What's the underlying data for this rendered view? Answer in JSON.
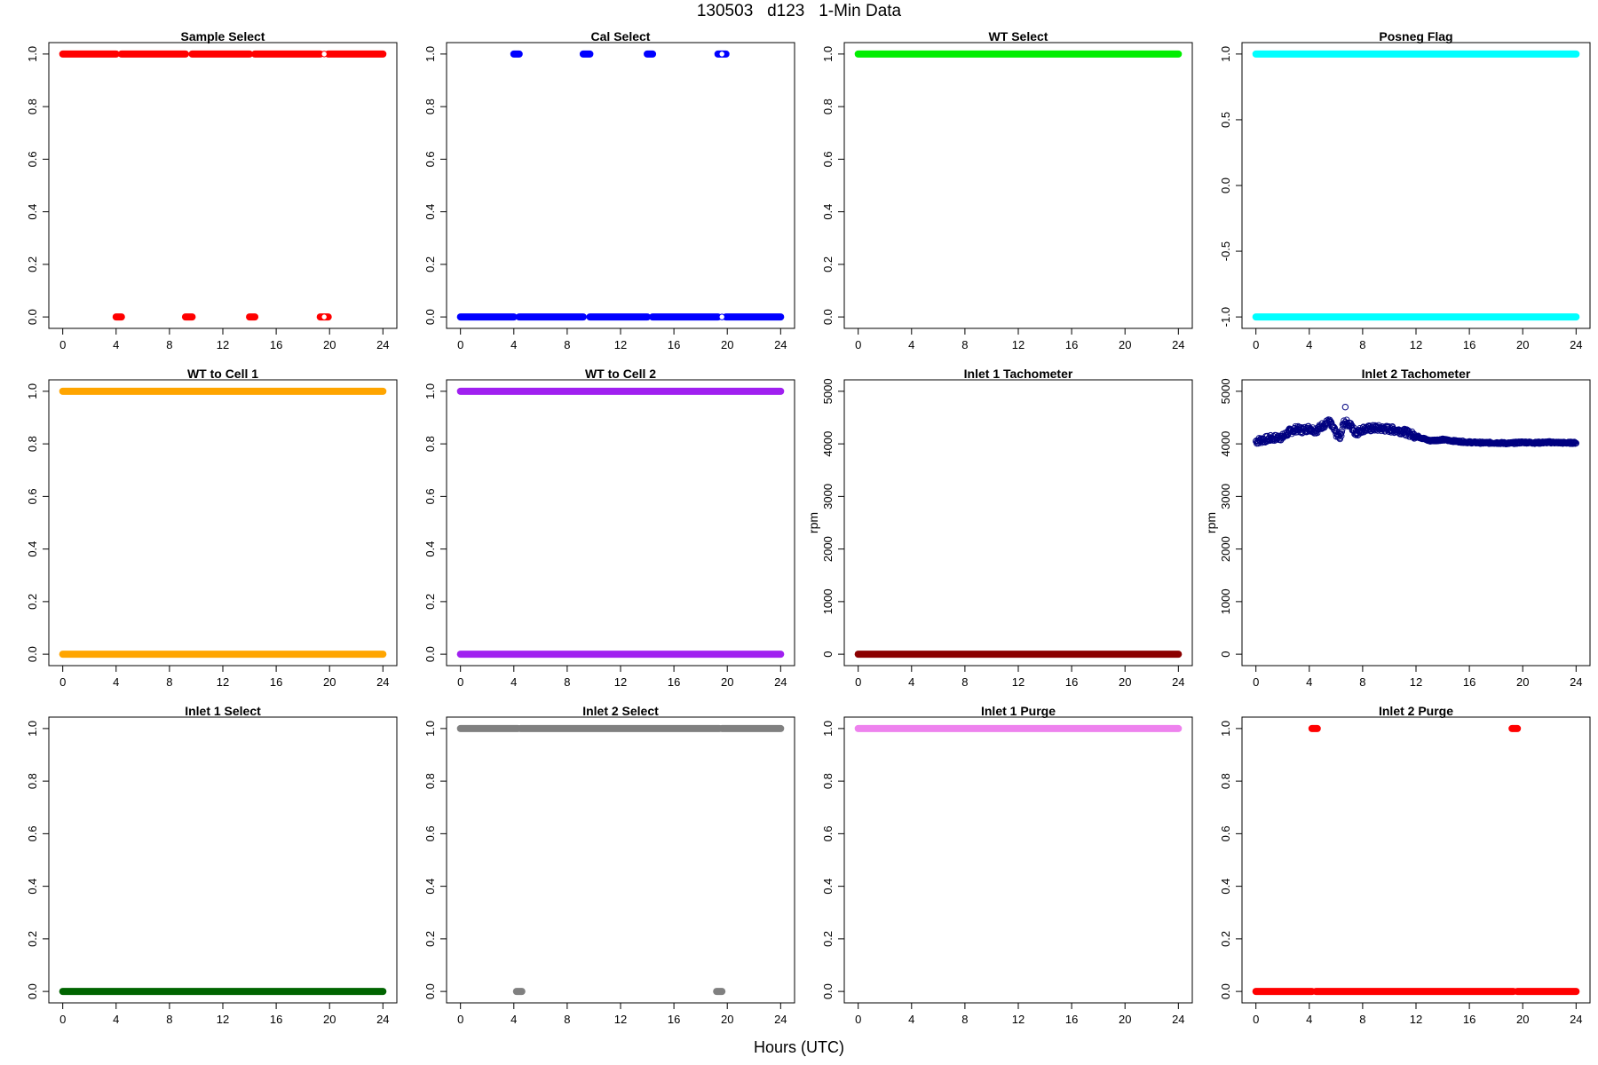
{
  "header": {
    "title": "130503   d123   1-Min Data",
    "xlabel": "Hours (UTC)"
  },
  "chart_data": [
    {
      "type": "scatter",
      "title": "Sample Select",
      "color": "#ff0000",
      "marker": "filled",
      "xlim": [
        0,
        24
      ],
      "xticks": [
        0,
        4,
        8,
        12,
        16,
        20,
        24
      ],
      "ylim": [
        0,
        1
      ],
      "yticks": [
        0,
        0.2,
        0.4,
        0.6,
        0.8,
        1
      ],
      "ytick_labels": [
        "0.0",
        "0.2",
        "0.4",
        "0.6",
        "0.8",
        "1.0"
      ],
      "ylabel": "",
      "levels": [
        {
          "y": 1,
          "x_ranges": [
            [
              0,
              4.0
            ],
            [
              4.4,
              9.2
            ],
            [
              9.7,
              14.0
            ],
            [
              14.4,
              19.3
            ],
            [
              19.9,
              24
            ]
          ]
        },
        {
          "y": 0,
          "x_ranges": [
            [
              4.0,
              4.4
            ],
            [
              9.2,
              9.7
            ],
            [
              14.0,
              14.4
            ],
            [
              19.3,
              19.9
            ]
          ]
        }
      ],
      "open_points": [
        [
          19.6,
          0
        ],
        [
          19.6,
          1
        ]
      ]
    },
    {
      "type": "scatter",
      "title": "Cal Select",
      "color": "#0000ff",
      "marker": "filled",
      "xlim": [
        0,
        24
      ],
      "xticks": [
        0,
        4,
        8,
        12,
        16,
        20,
        24
      ],
      "ylim": [
        0,
        1
      ],
      "yticks": [
        0,
        0.2,
        0.4,
        0.6,
        0.8,
        1
      ],
      "ytick_labels": [
        "0.0",
        "0.2",
        "0.4",
        "0.6",
        "0.8",
        "1.0"
      ],
      "ylabel": "",
      "levels": [
        {
          "y": 0,
          "x_ranges": [
            [
              0,
              4.0
            ],
            [
              4.4,
              9.2
            ],
            [
              9.7,
              14.0
            ],
            [
              14.4,
              19.3
            ],
            [
              19.9,
              24
            ]
          ]
        },
        {
          "y": 1,
          "x_ranges": [
            [
              4.0,
              4.4
            ],
            [
              9.2,
              9.7
            ],
            [
              14.0,
              14.4
            ],
            [
              19.3,
              19.9
            ]
          ]
        }
      ],
      "open_points": [
        [
          19.6,
          0
        ],
        [
          19.6,
          1
        ]
      ]
    },
    {
      "type": "scatter",
      "title": "WT Select",
      "color": "#00ee00",
      "marker": "filled",
      "xlim": [
        0,
        24
      ],
      "xticks": [
        0,
        4,
        8,
        12,
        16,
        20,
        24
      ],
      "ylim": [
        0,
        1
      ],
      "yticks": [
        0,
        0.2,
        0.4,
        0.6,
        0.8,
        1
      ],
      "ytick_labels": [
        "0.0",
        "0.2",
        "0.4",
        "0.6",
        "0.8",
        "1.0"
      ],
      "ylabel": "",
      "levels": [
        {
          "y": 1,
          "x_ranges": [
            [
              0,
              24
            ]
          ]
        }
      ],
      "open_points": []
    },
    {
      "type": "scatter",
      "title": "Posneg Flag",
      "color": "#00ffff",
      "marker": "filled",
      "xlim": [
        0,
        24
      ],
      "xticks": [
        0,
        4,
        8,
        12,
        16,
        20,
        24
      ],
      "ylim": [
        -1,
        1
      ],
      "yticks": [
        -1,
        -0.5,
        0,
        0.5,
        1
      ],
      "ytick_labels": [
        "-1.0",
        "-0.5",
        "0.0",
        "0.5",
        "1.0"
      ],
      "ylabel": "",
      "levels": [
        {
          "y": 1,
          "x_ranges": [
            [
              0,
              24
            ]
          ]
        },
        {
          "y": -1,
          "x_ranges": [
            [
              0,
              24
            ]
          ]
        }
      ],
      "open_points": []
    },
    {
      "type": "scatter",
      "title": "WT to Cell 1",
      "color": "#ffa500",
      "marker": "filled",
      "xlim": [
        0,
        24
      ],
      "xticks": [
        0,
        4,
        8,
        12,
        16,
        20,
        24
      ],
      "ylim": [
        0,
        1
      ],
      "yticks": [
        0,
        0.2,
        0.4,
        0.6,
        0.8,
        1
      ],
      "ytick_labels": [
        "0.0",
        "0.2",
        "0.4",
        "0.6",
        "0.8",
        "1.0"
      ],
      "ylabel": "",
      "levels": [
        {
          "y": 1,
          "x_ranges": [
            [
              0,
              24
            ]
          ]
        },
        {
          "y": 0,
          "x_ranges": [
            [
              0,
              24
            ]
          ]
        }
      ],
      "open_points": []
    },
    {
      "type": "scatter",
      "title": "WT to Cell 2",
      "color": "#a020f0",
      "marker": "filled",
      "xlim": [
        0,
        24
      ],
      "xticks": [
        0,
        4,
        8,
        12,
        16,
        20,
        24
      ],
      "ylim": [
        0,
        1
      ],
      "yticks": [
        0,
        0.2,
        0.4,
        0.6,
        0.8,
        1
      ],
      "ytick_labels": [
        "0.0",
        "0.2",
        "0.4",
        "0.6",
        "0.8",
        "1.0"
      ],
      "ylabel": "",
      "levels": [
        {
          "y": 1,
          "x_ranges": [
            [
              0,
              24
            ]
          ]
        },
        {
          "y": 0,
          "x_ranges": [
            [
              0,
              24
            ]
          ]
        }
      ],
      "open_points": []
    },
    {
      "type": "scatter",
      "title": "Inlet 1 Tachometer",
      "color": "#8b0000",
      "marker": "filled",
      "xlim": [
        0,
        24
      ],
      "xticks": [
        0,
        4,
        8,
        12,
        16,
        20,
        24
      ],
      "ylim": [
        0,
        5000
      ],
      "yticks": [
        0,
        1000,
        2000,
        3000,
        4000,
        5000
      ],
      "ytick_labels": [
        "0",
        "1000",
        "2000",
        "3000",
        "4000",
        "5000"
      ],
      "ylabel": "rpm",
      "levels": [
        {
          "y": 0,
          "x_ranges": [
            [
              0,
              24
            ]
          ]
        }
      ],
      "open_points": []
    },
    {
      "type": "scatter",
      "title": "Inlet 2 Tachometer",
      "color": "#000080",
      "marker": "open",
      "xlim": [
        0,
        24
      ],
      "xticks": [
        0,
        4,
        8,
        12,
        16,
        20,
        24
      ],
      "ylim": [
        0,
        5000
      ],
      "yticks": [
        0,
        1000,
        2000,
        3000,
        4000,
        5000
      ],
      "ytick_labels": [
        "0",
        "1000",
        "2000",
        "3000",
        "4000",
        "5000"
      ],
      "ylabel": "rpm",
      "levels": [],
      "open_points": [
        [
          6.7,
          4700
        ]
      ],
      "trend": [
        [
          0,
          4050
        ],
        [
          1,
          4100
        ],
        [
          2,
          4130
        ],
        [
          2.5,
          4230
        ],
        [
          3,
          4280
        ],
        [
          3.5,
          4260
        ],
        [
          4,
          4300
        ],
        [
          4.5,
          4250
        ],
        [
          5,
          4350
        ],
        [
          5.5,
          4420
        ],
        [
          6,
          4200
        ],
        [
          6.3,
          4100
        ],
        [
          6.6,
          4420
        ],
        [
          7,
          4380
        ],
        [
          7.5,
          4200
        ],
        [
          8,
          4280
        ],
        [
          9,
          4300
        ],
        [
          10,
          4280
        ],
        [
          11,
          4240
        ],
        [
          12,
          4150
        ],
        [
          13,
          4060
        ],
        [
          14,
          4080
        ],
        [
          15,
          4050
        ],
        [
          16,
          4030
        ],
        [
          17,
          4020
        ],
        [
          18,
          4020
        ],
        [
          19,
          4010
        ],
        [
          20,
          4030
        ],
        [
          21,
          4020
        ],
        [
          22,
          4030
        ],
        [
          23,
          4020
        ],
        [
          24,
          4020
        ]
      ]
    },
    {
      "type": "scatter",
      "title": "Inlet 1 Select",
      "color": "#006400",
      "marker": "filled",
      "xlim": [
        0,
        24
      ],
      "xticks": [
        0,
        4,
        8,
        12,
        16,
        20,
        24
      ],
      "ylim": [
        0,
        1
      ],
      "yticks": [
        0,
        0.2,
        0.4,
        0.6,
        0.8,
        1
      ],
      "ytick_labels": [
        "0.0",
        "0.2",
        "0.4",
        "0.6",
        "0.8",
        "1.0"
      ],
      "ylabel": "",
      "levels": [
        {
          "y": 0,
          "x_ranges": [
            [
              0,
              24
            ]
          ]
        }
      ],
      "open_points": []
    },
    {
      "type": "scatter",
      "title": "Inlet 2 Select",
      "color": "#808080",
      "marker": "filled",
      "xlim": [
        0,
        24
      ],
      "xticks": [
        0,
        4,
        8,
        12,
        16,
        20,
        24
      ],
      "ylim": [
        0,
        1
      ],
      "yticks": [
        0,
        0.2,
        0.4,
        0.6,
        0.8,
        1
      ],
      "ytick_labels": [
        "0.0",
        "0.2",
        "0.4",
        "0.6",
        "0.8",
        "1.0"
      ],
      "ylabel": "",
      "levels": [
        {
          "y": 1,
          "x_ranges": [
            [
              0,
              4.3
            ],
            [
              4.5,
              19.4
            ],
            [
              19.6,
              24
            ]
          ]
        },
        {
          "y": 0,
          "x_ranges": [
            [
              4.2,
              4.6
            ],
            [
              19.2,
              19.6
            ]
          ]
        }
      ],
      "open_points": []
    },
    {
      "type": "scatter",
      "title": "Inlet 1 Purge",
      "color": "#ee82ee",
      "marker": "filled",
      "xlim": [
        0,
        24
      ],
      "xticks": [
        0,
        4,
        8,
        12,
        16,
        20,
        24
      ],
      "ylim": [
        0,
        1
      ],
      "yticks": [
        0,
        0.2,
        0.4,
        0.6,
        0.8,
        1
      ],
      "ytick_labels": [
        "0.0",
        "0.2",
        "0.4",
        "0.6",
        "0.8",
        "1.0"
      ],
      "ylabel": "",
      "levels": [
        {
          "y": 1,
          "x_ranges": [
            [
              0,
              24
            ]
          ]
        }
      ],
      "open_points": []
    },
    {
      "type": "scatter",
      "title": "Inlet 2 Purge",
      "color": "#ff0000",
      "marker": "filled",
      "xlim": [
        0,
        24
      ],
      "xticks": [
        0,
        4,
        8,
        12,
        16,
        20,
        24
      ],
      "ylim": [
        0,
        1
      ],
      "yticks": [
        0,
        0.2,
        0.4,
        0.6,
        0.8,
        1
      ],
      "ytick_labels": [
        "0.0",
        "0.2",
        "0.4",
        "0.6",
        "0.8",
        "1.0"
      ],
      "ylabel": "",
      "levels": [
        {
          "y": 0,
          "x_ranges": [
            [
              0,
              4.2
            ],
            [
              4.5,
              19.3
            ],
            [
              19.6,
              24
            ]
          ]
        },
        {
          "y": 1,
          "x_ranges": [
            [
              4.2,
              4.6
            ],
            [
              19.2,
              19.6
            ]
          ]
        }
      ],
      "open_points": []
    }
  ]
}
